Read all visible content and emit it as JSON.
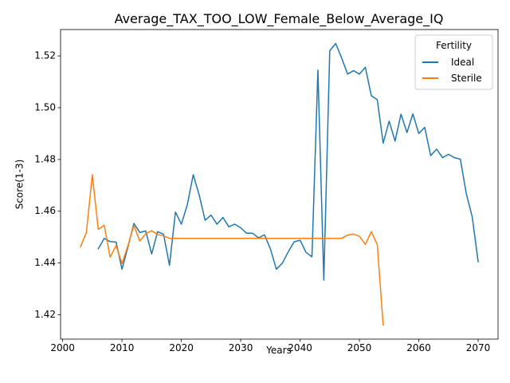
{
  "chart_data": {
    "type": "line",
    "title": "Average_TAX_TOO_LOW_Female_Below_Average_IQ",
    "xlabel": "Years",
    "ylabel": "Score(1-3)",
    "xlim": [
      1999.65,
      2073.35
    ],
    "ylim": [
      1.4106,
      1.5302
    ],
    "xticks": [
      2000,
      2010,
      2020,
      2030,
      2040,
      2050,
      2060,
      2070
    ],
    "yticks": [
      1.42,
      1.44,
      1.46,
      1.48,
      1.5,
      1.52
    ],
    "ytick_labels": [
      "1.42",
      "1.44",
      "1.46",
      "1.48",
      "1.50",
      "1.52"
    ],
    "grid": false,
    "legend": {
      "title": "Fertility",
      "placement": "top-right"
    },
    "series": [
      {
        "name": "Ideal",
        "color": "#1f77b4",
        "x": [
          2006,
          2007,
          2008,
          2009,
          2010,
          2011,
          2012,
          2013,
          2014,
          2015,
          2016,
          2017,
          2018,
          2019,
          2020,
          2021,
          2022,
          2023,
          2024,
          2025,
          2026,
          2027,
          2028,
          2029,
          2030,
          2031,
          2032,
          2033,
          2034,
          2035,
          2036,
          2037,
          2038,
          2039,
          2040,
          2041,
          2042,
          2043,
          2044,
          2045,
          2046,
          2047,
          2048,
          2049,
          2050,
          2051,
          2052,
          2053,
          2054,
          2055,
          2056,
          2057,
          2058,
          2059,
          2060,
          2061,
          2062,
          2063,
          2064,
          2065,
          2066,
          2067,
          2068,
          2069,
          2070
        ],
        "values": [
          1.4455,
          1.4495,
          1.4483,
          1.4481,
          1.4376,
          1.4462,
          1.4553,
          1.4518,
          1.4524,
          1.4435,
          1.4521,
          1.4511,
          1.4391,
          1.4597,
          1.455,
          1.4625,
          1.4741,
          1.4663,
          1.4565,
          1.4585,
          1.455,
          1.4576,
          1.454,
          1.455,
          1.4536,
          1.4515,
          1.4515,
          1.4497,
          1.4509,
          1.4455,
          1.4376,
          1.4399,
          1.4443,
          1.4482,
          1.4488,
          1.4441,
          1.4424,
          1.5145,
          1.4334,
          1.522,
          1.5248,
          1.5192,
          1.513,
          1.5143,
          1.513,
          1.5156,
          1.5046,
          1.5031,
          1.4863,
          1.4948,
          1.4871,
          1.4975,
          1.4904,
          1.4976,
          1.49,
          1.4924,
          1.4815,
          1.484,
          1.4807,
          1.482,
          1.4807,
          1.4801,
          1.4668,
          1.4578,
          1.4405
        ]
      },
      {
        "name": "Sterile",
        "color": "#ff7f0e",
        "x": [
          2003,
          2004,
          2005,
          2006,
          2007,
          2008,
          2009,
          2010,
          2011,
          2012,
          2013,
          2014,
          2015,
          2016,
          2017,
          2018,
          2019,
          2020,
          2021,
          2022,
          2023,
          2024,
          2025,
          2026,
          2027,
          2028,
          2029,
          2030,
          2031,
          2032,
          2033,
          2034,
          2035,
          2036,
          2037,
          2038,
          2039,
          2040,
          2041,
          2042,
          2043,
          2044,
          2045,
          2046,
          2047,
          2048,
          2049,
          2050,
          2051,
          2052,
          2053,
          2054
        ],
        "values": [
          1.4462,
          1.4518,
          1.4741,
          1.453,
          1.4546,
          1.4423,
          1.4467,
          1.4398,
          1.4467,
          1.4545,
          1.4485,
          1.4513,
          1.4525,
          1.451,
          1.4505,
          1.4495,
          1.4495,
          1.4495,
          1.4495,
          1.4495,
          1.4495,
          1.4495,
          1.4495,
          1.4495,
          1.4495,
          1.4495,
          1.4495,
          1.4495,
          1.4495,
          1.4495,
          1.4495,
          1.4495,
          1.4495,
          1.4495,
          1.4495,
          1.4495,
          1.4495,
          1.4495,
          1.4495,
          1.4495,
          1.4495,
          1.4495,
          1.4495,
          1.4495,
          1.4495,
          1.4508,
          1.4512,
          1.4503,
          1.4472,
          1.4521,
          1.4472,
          1.416
        ]
      }
    ]
  }
}
